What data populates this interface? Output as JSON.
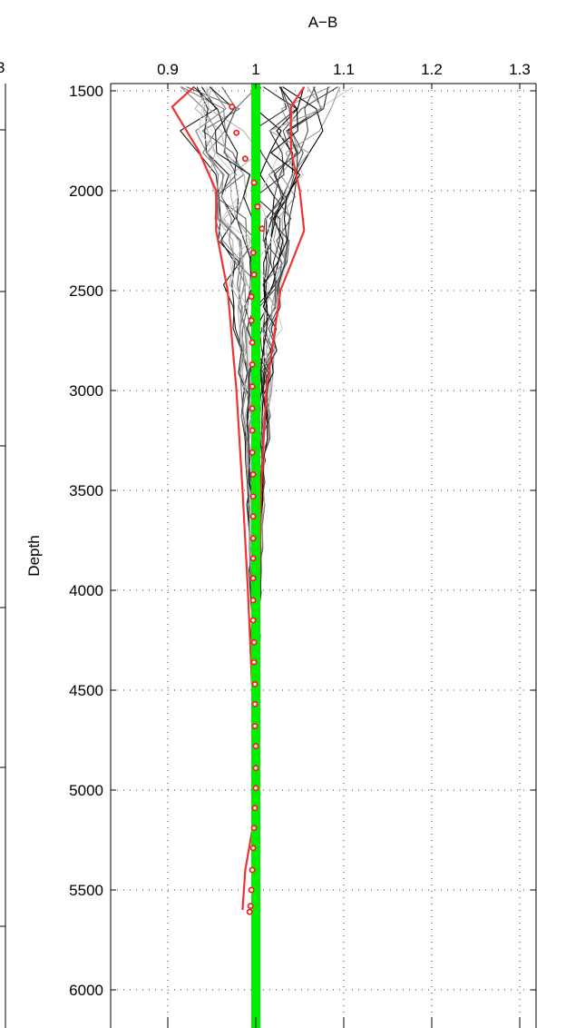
{
  "chart_data": {
    "type": "line",
    "title": "A−B",
    "xlabel": "",
    "ylabel": "Depth",
    "xlim": [
      0.84,
      1.32
    ],
    "ylim": [
      1500,
      6200
    ],
    "y_reversed": true,
    "x_ticks": [
      "0.9",
      "1",
      "1.1",
      "1.2",
      "1.3"
    ],
    "x_tick_values": [
      0.9,
      1.0,
      1.1,
      1.2,
      1.3
    ],
    "y_ticks": [
      "1500",
      "2000",
      "2500",
      "3000",
      "3500",
      "4000",
      "4500",
      "5000",
      "5500",
      "6000"
    ],
    "y_tick_values": [
      1500,
      2000,
      2500,
      3000,
      3500,
      4000,
      4500,
      5000,
      5500,
      6000
    ],
    "left_axis_partial_tick": "3",
    "grid": true,
    "reference_line": {
      "x": 1.0,
      "color": "#00ee00"
    },
    "mean_points": {
      "color": "#ee2222",
      "depth": [
        1580,
        1710,
        1840,
        1960,
        2080,
        2190,
        2310,
        2420,
        2530,
        2650,
        2760,
        2870,
        2980,
        3090,
        3200,
        3310,
        3420,
        3530,
        3630,
        3740,
        3840,
        3940,
        4050,
        4150,
        4260,
        4360,
        4470,
        4570,
        4680,
        4780,
        4890,
        4990,
        5090,
        5190,
        5290,
        5400,
        5500,
        5580,
        5610
      ],
      "value": [
        0.973,
        0.978,
        0.988,
        0.998,
        1.002,
        1.007,
        0.997,
        0.998,
        0.995,
        0.995,
        0.996,
        0.996,
        0.996,
        0.996,
        0.996,
        0.996,
        0.997,
        0.997,
        0.997,
        0.997,
        0.997,
        0.997,
        0.997,
        0.997,
        0.998,
        0.998,
        0.999,
        0.999,
        0.999,
        1.0,
        1.0,
        1.0,
        0.999,
        0.998,
        0.997,
        0.996,
        0.995,
        0.994,
        0.993
      ]
    },
    "envelope_lines": {
      "color": "#ee3333",
      "depth": [
        1480,
        1580,
        1800,
        2000,
        2200,
        2500,
        3000,
        3500,
        4000,
        4500,
        5000,
        5200,
        5400,
        5600
      ],
      "lower": [
        0.93,
        0.905,
        0.935,
        0.955,
        0.955,
        0.968,
        0.978,
        0.985,
        0.991,
        0.996,
        0.998,
        0.996,
        0.988,
        0.985
      ],
      "upper": [
        1.055,
        1.04,
        1.04,
        1.05,
        1.055,
        1.028,
        1.012,
        1.006,
        1.004,
        1.002,
        1.001,
        1.0,
        1.0,
        0.999
      ]
    },
    "series_colors": [
      "#000000",
      "#1a1a1a",
      "#333333",
      "#4d4d4d",
      "#666666",
      "#7f7f7f",
      "#999999",
      "#b3b3b3",
      "#cccccc"
    ]
  }
}
